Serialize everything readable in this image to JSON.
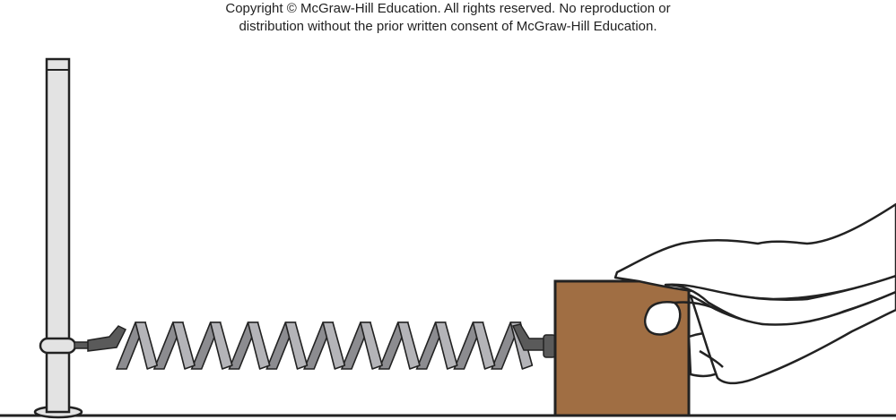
{
  "copyright": {
    "line1": "Copyright © McGraw-Hill Education.  All rights reserved. No reproduction or",
    "line2": "distribution without the prior written consent of McGraw-Hill Education."
  },
  "colors": {
    "post_fill": "#e3e3e3",
    "coil_fill": "#b4b4b8",
    "connector_fill": "#5a5a5a",
    "block_fill": "#a06e43",
    "skin_fill": "#ffffff",
    "outline": "#222222"
  },
  "diagram": {
    "spring_coils": 11,
    "icons": [
      "post-icon",
      "spring-icon",
      "block-icon",
      "hand-icon"
    ]
  }
}
